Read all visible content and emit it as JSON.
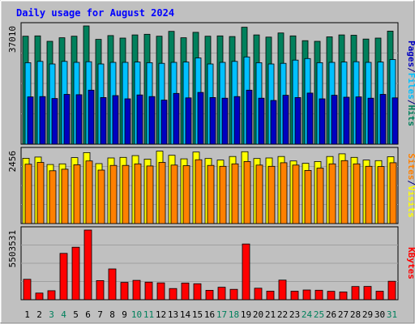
{
  "title": "Daily usage for August 2024",
  "days": [
    "1",
    "2",
    "3",
    "4",
    "5",
    "6",
    "7",
    "8",
    "9",
    "10",
    "11",
    "12",
    "13",
    "14",
    "15",
    "16",
    "17",
    "18",
    "19",
    "20",
    "21",
    "22",
    "23",
    "24",
    "25",
    "26",
    "27",
    "28",
    "29",
    "30",
    "31"
  ],
  "weekend_days": [
    3,
    4,
    10,
    11,
    17,
    18,
    24,
    25,
    31
  ],
  "colors": {
    "background": "#c0c0c0",
    "title": "#0000ff",
    "hits": "#00805c",
    "files": "#00c0ff",
    "pages": "#0000c0",
    "visits": "#ffff00",
    "sites": "#ff8000",
    "kbytes": "#ff0000",
    "weekday_label": "#000000",
    "weekend_label": "#00805c"
  },
  "chart_data": [
    {
      "type": "bar",
      "panel": "hits_files_pages",
      "y_max_label": "37010",
      "ylim": [
        0,
        37010
      ],
      "legend": [
        "Pages",
        "/",
        "Files",
        "/",
        "Hits"
      ],
      "series": [
        {
          "name": "Hits",
          "values": [
            33800,
            33900,
            32200,
            33300,
            33800,
            37010,
            32800,
            34000,
            33200,
            34200,
            34400,
            33800,
            35300,
            33300,
            35000,
            33800,
            33900,
            33700,
            36600,
            34200,
            33500,
            34800,
            33900,
            32400,
            32200,
            33600,
            34200,
            34100,
            32900,
            33200,
            35400
          ]
        },
        {
          "name": "Files",
          "values": [
            25500,
            25900,
            25100,
            25900,
            25600,
            25800,
            25100,
            25600,
            25600,
            25700,
            25500,
            25300,
            25600,
            25700,
            27000,
            25100,
            25600,
            25900,
            27300,
            25500,
            25100,
            25300,
            26300,
            26800,
            25500,
            25600,
            25700,
            25800,
            25600,
            25700,
            26500
          ]
        },
        {
          "name": "Pages",
          "values": [
            14800,
            14900,
            14300,
            15600,
            15500,
            16900,
            14600,
            15200,
            14200,
            15400,
            14900,
            13800,
            15900,
            14500,
            16200,
            14600,
            14400,
            14900,
            16900,
            14400,
            13700,
            15300,
            14600,
            16000,
            14200,
            15300,
            14700,
            14800,
            14400,
            15600,
            14500
          ]
        }
      ]
    },
    {
      "type": "bar",
      "panel": "visits_sites",
      "y_max_label": "2456",
      "ylim": [
        0,
        2456
      ],
      "legend": [
        "Sites",
        "/",
        "Visits"
      ],
      "series": [
        {
          "name": "Visits",
          "values": [
            2200,
            2240,
            1990,
            2010,
            2220,
            2390,
            2020,
            2210,
            2230,
            2290,
            2170,
            2440,
            2300,
            2180,
            2410,
            2190,
            2140,
            2260,
            2420,
            2190,
            2210,
            2260,
            2110,
            2030,
            2090,
            2260,
            2350,
            2230,
            2140,
            2120,
            2250
          ]
        },
        {
          "name": "Sites",
          "values": [
            2000,
            2060,
            1780,
            1830,
            1980,
            2110,
            1800,
            1960,
            1960,
            2010,
            1940,
            2060,
            1970,
            1950,
            2150,
            1960,
            1930,
            2010,
            2090,
            1970,
            1930,
            2050,
            1970,
            1790,
            1870,
            2010,
            2120,
            2010,
            1930,
            1920,
            2050
          ]
        }
      ]
    },
    {
      "type": "bar",
      "panel": "kbytes",
      "y_max_label": "5503531",
      "ylim": [
        0,
        5503531
      ],
      "legend": [
        "KBytes"
      ],
      "series": [
        {
          "name": "KBytes",
          "values": [
            1610000,
            522000,
            709000,
            3660000,
            4150000,
            5503531,
            1510000,
            2430000,
            1370000,
            1530000,
            1390000,
            1330000,
            880000,
            1320000,
            1260000,
            745000,
            987000,
            816000,
            4400000,
            907000,
            677000,
            1550000,
            669000,
            768000,
            751000,
            668000,
            612000,
            1040000,
            1050000,
            672000,
            1460000
          ]
        }
      ]
    }
  ]
}
